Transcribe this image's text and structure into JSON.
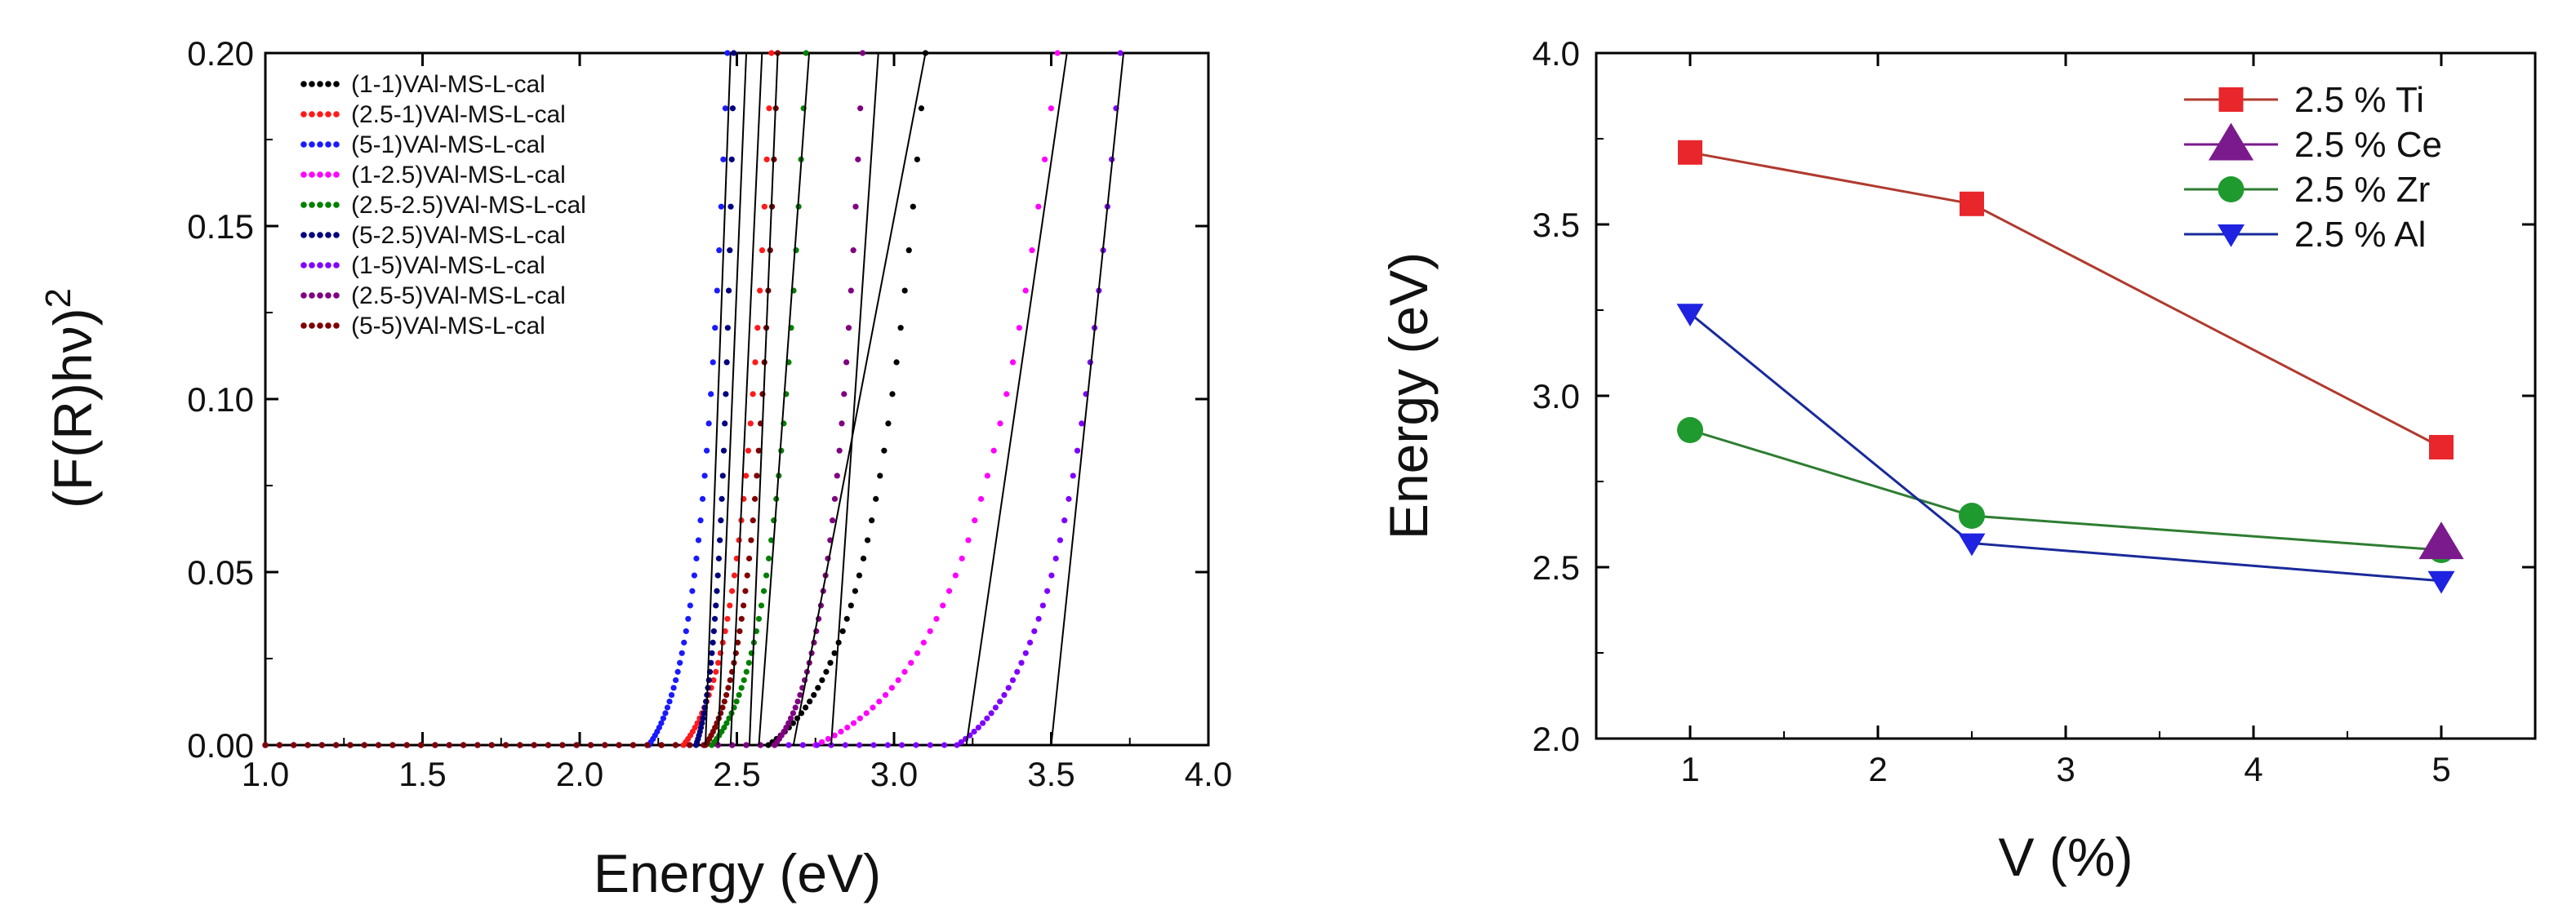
{
  "chart_data": [
    {
      "type": "scatter",
      "subtype": "tauc-plot",
      "title": "",
      "xlabel": "Energy (eV)",
      "ylabel_main": "(F(R)hν)",
      "ylabel_sup": "2",
      "xlim": [
        1.0,
        4.0
      ],
      "ylim": [
        0.0,
        0.2
      ],
      "xticks": [
        "1.0",
        "1.5",
        "2.0",
        "2.5",
        "3.0",
        "3.5",
        "4.0"
      ],
      "yticks": [
        "0.00",
        "0.05",
        "0.10",
        "0.15",
        "0.20"
      ],
      "legend_position": "top-left",
      "series": [
        {
          "name": "(1-1)VAl-MS-L-cal",
          "color": "#000000",
          "onset": 2.6,
          "top_x": 3.1
        },
        {
          "name": "(2.5-1)VAl-MS-L-cal",
          "color": "#ff1a1a",
          "onset": 2.33,
          "top_x": 2.61
        },
        {
          "name": "(5-1)VAl-MS-L-cal",
          "color": "#1a1aff",
          "onset": 2.22,
          "top_x": 2.47
        },
        {
          "name": "(1-2.5)VAl-MS-L-cal",
          "color": "#ff00ff",
          "onset": 2.75,
          "top_x": 3.52
        },
        {
          "name": "(2.5-2.5)VAl-MS-L-cal",
          "color": "#008000",
          "onset": 2.42,
          "top_x": 2.72
        },
        {
          "name": "(5-2.5)VAl-MS-L-cal",
          "color": "#00007f",
          "onset": 2.37,
          "top_x": 2.49
        },
        {
          "name": "(1-5)VAl-MS-L-cal",
          "color": "#7f00ff",
          "onset": 3.2,
          "top_x": 3.72
        },
        {
          "name": "(2.5-5)VAl-MS-L-cal",
          "color": "#800080",
          "onset": 2.62,
          "top_x": 2.9
        },
        {
          "name": "(5-5)VAl-MS-L-cal",
          "color": "#7f0000",
          "onset": 2.4,
          "top_x": 2.63
        }
      ],
      "tangent_lines": [
        {
          "x0": 2.4,
          "x1": 2.48
        },
        {
          "x0": 2.44,
          "x1": 2.53
        },
        {
          "x0": 2.48,
          "x1": 2.58
        },
        {
          "x0": 2.54,
          "x1": 2.63
        },
        {
          "x0": 2.57,
          "x1": 2.73
        },
        {
          "x0": 2.68,
          "x1": 3.1
        },
        {
          "x0": 2.8,
          "x1": 2.95
        },
        {
          "x0": 3.23,
          "x1": 3.55
        },
        {
          "x0": 3.5,
          "x1": 3.73
        }
      ]
    },
    {
      "type": "line",
      "title": "",
      "xlabel": "V (%)",
      "ylabel": "Energy (eV)",
      "xlim": [
        0.5,
        5.5
      ],
      "ylim": [
        2.0,
        4.0
      ],
      "xticks": [
        "1",
        "2",
        "3",
        "4",
        "5"
      ],
      "yticks": [
        "2.0",
        "2.5",
        "3.0",
        "3.5",
        "4.0"
      ],
      "legend_position": "top-right",
      "series": [
        {
          "name": "2.5 % Ti",
          "color": "#e8262b",
          "line_color": "#b03a2e",
          "marker": "square",
          "x": [
            1,
            2.5,
            5
          ],
          "y": [
            3.71,
            3.56,
            2.85
          ]
        },
        {
          "name": "2.5 % Ce",
          "color": "#7b1a8c",
          "line_color": "#7b1a8c",
          "marker": "triangle-up",
          "x": [
            5
          ],
          "y": [
            2.57
          ]
        },
        {
          "name": "2.5 % Zr",
          "color": "#1f9a2e",
          "line_color": "#2e7d32",
          "marker": "circle",
          "x": [
            1,
            2.5,
            5
          ],
          "y": [
            2.9,
            2.65,
            2.55
          ]
        },
        {
          "name": "2.5 % Al",
          "color": "#1f22e0",
          "line_color": "#1a2a9a",
          "marker": "triangle-down",
          "x": [
            1,
            2.5,
            5
          ],
          "y": [
            3.24,
            2.57,
            2.46
          ]
        }
      ]
    }
  ]
}
